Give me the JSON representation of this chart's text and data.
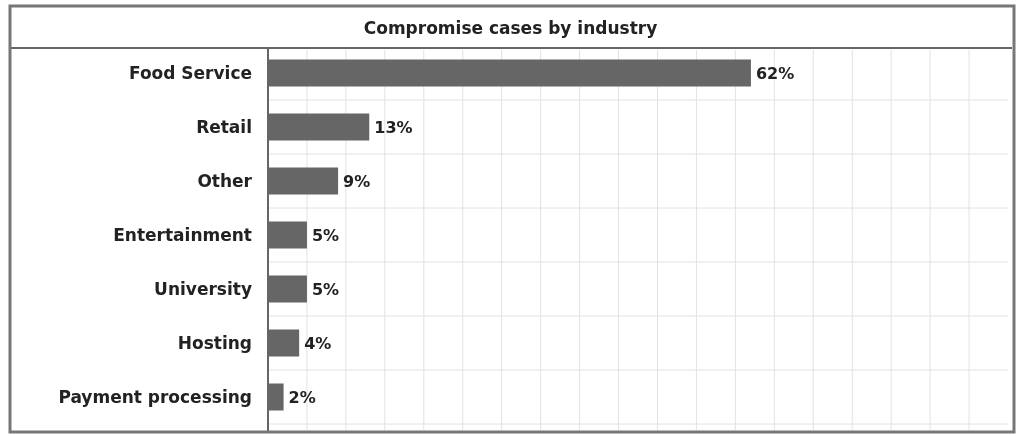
{
  "chart_data": {
    "type": "bar",
    "orientation": "horizontal",
    "title": "Compromise cases by industry",
    "categories": [
      "Food Service",
      "Retail",
      "Other",
      "Entertainment",
      "University",
      "Hosting",
      "Payment processing"
    ],
    "values": [
      62,
      13,
      9,
      5,
      5,
      4,
      2
    ],
    "value_labels": [
      "62%",
      "13%",
      "9%",
      "5%",
      "5%",
      "4%",
      "2%"
    ],
    "color": "#666666",
    "xlim": [
      0,
      95
    ],
    "xticks": [
      {
        "value": 5,
        "label": null
      },
      {
        "value": 10,
        "label": null
      },
      {
        "value": 15,
        "label": null
      },
      {
        "value": 20,
        "label": null
      },
      {
        "value": 25,
        "label": null
      },
      {
        "value": 30,
        "label": null
      },
      {
        "value": 35,
        "label": null
      },
      {
        "value": 40,
        "label": null
      },
      {
        "value": 45,
        "label": null
      },
      {
        "value": 50,
        "label": null
      },
      {
        "value": 55,
        "label": null
      },
      {
        "value": 60,
        "label": null
      },
      {
        "value": 65,
        "label": null
      },
      {
        "value": 70,
        "label": null
      },
      {
        "value": 75,
        "label": null
      },
      {
        "value": 80,
        "label": null
      },
      {
        "value": 85,
        "label": null
      },
      {
        "value": 90,
        "label": null
      }
    ],
    "grid": true
  }
}
